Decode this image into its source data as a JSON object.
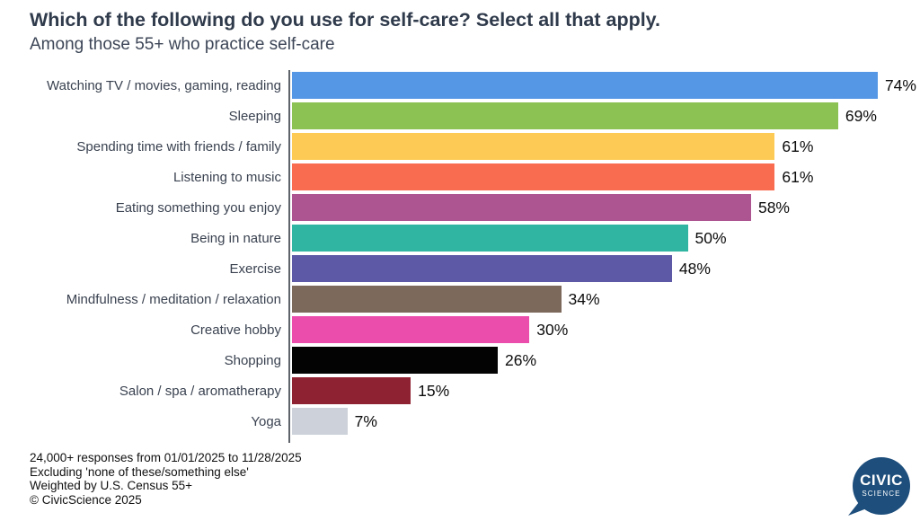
{
  "header": {
    "title": "Which of the following do you use for self-care? Select all that apply.",
    "subtitle": "Among those 55+ who practice self-care"
  },
  "chart_data": {
    "type": "bar",
    "orientation": "horizontal",
    "title": "Which of the following do you use for self-care? Select all that apply.",
    "subtitle": "Among those 55+ who practice self-care",
    "value_suffix": "%",
    "xlim": [
      0,
      78
    ],
    "grid": false,
    "legend": false,
    "categories": [
      "Watching TV / movies, gaming, reading",
      "Sleeping",
      "Spending time with friends / family",
      "Listening to music",
      "Eating something you enjoy",
      "Being in nature",
      "Exercise",
      "Mindfulness / meditation / relaxation",
      "Creative hobby",
      "Shopping",
      "Salon / spa / aromatherapy",
      "Yoga"
    ],
    "values": [
      74,
      69,
      61,
      61,
      58,
      50,
      48,
      34,
      30,
      26,
      15,
      7
    ],
    "colors": [
      "#5596e5",
      "#8cc153",
      "#fdcb55",
      "#fa6c50",
      "#ad5590",
      "#2fb5a1",
      "#5d59a6",
      "#7c695c",
      "#eb4dac",
      "#030303",
      "#8e2132",
      "#cdd2da"
    ],
    "axis_color": "#5f646b"
  },
  "footnotes": [
    "24,000+ responses from 01/01/2025 to 11/28/2025",
    "Excluding 'none of these/something else'",
    "Weighted by U.S. Census 55+",
    "© CivicScience 2025"
  ],
  "logo": {
    "line1": "CIVIC",
    "line2": "SCIENCE",
    "color": "#1d4e7c"
  }
}
